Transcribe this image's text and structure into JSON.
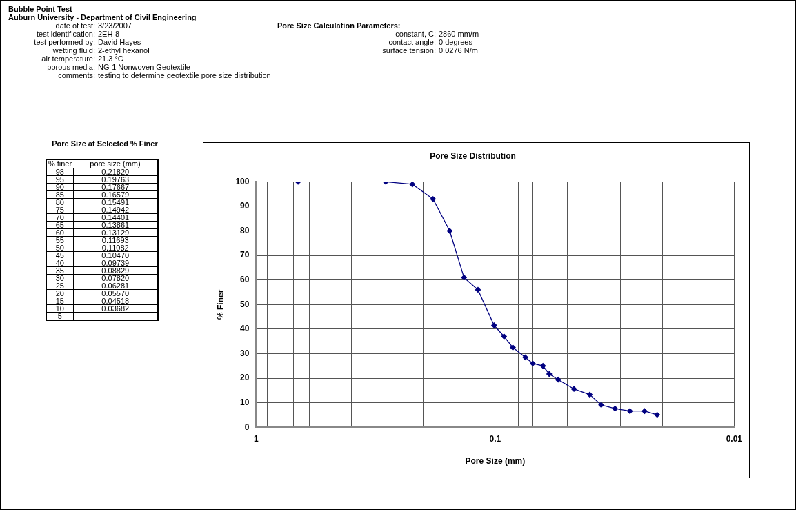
{
  "chart_data": [
    {
      "type": "other",
      "title": "Bubble Point Test",
      "subtitle": "Auburn University - Department of Civil Engineering",
      "annotations": [
        "date of test:",
        "3/23/2007",
        "test identification:",
        "2EH-8",
        "test performed by:",
        "David Hayes",
        "wetting fluid:",
        "2-ethyl hexanol",
        "air temperature:",
        "21.3 °C",
        "porous media:",
        "NG-1 Nonwoven Geotextile",
        "comments:",
        "testing to determine geotextile pore size distribution"
      ]
    },
    {
      "type": "other",
      "title": "Pore Size Calculation Parameters:",
      "annotations": [
        "constant, C:",
        "2860 mm/m",
        "contact angle:",
        "0 degrees",
        "surface tension:",
        "0.0276 N/m"
      ]
    },
    {
      "type": "other",
      "title": "Pore Size at Selected % Finer",
      "xlabel": "% finer",
      "ylabel": "pore size (mm)",
      "annotations": [
        "98",
        "0.21820",
        "95",
        "0.19763",
        "90",
        "0.17667",
        "85",
        "0.16579",
        "80",
        "0.15491",
        "75",
        "0.14942",
        "70",
        "0.14401",
        "65",
        "0.13861",
        "60",
        "0.13129",
        "55",
        "0.11693",
        "50",
        "0.11082",
        "45",
        "0.10470",
        "40",
        "0.09739",
        "35",
        "0.08829",
        "30",
        "0.07820",
        "25",
        "0.06281",
        "20",
        "0.05570",
        "15",
        "0.04518",
        "10",
        "0.03682",
        "5",
        "---"
      ]
    },
    {
      "type": "line",
      "title": "Pore Size Distribution",
      "xlabel": "Pore Size (mm)",
      "ylabel": "% Finer",
      "log": "x",
      "grid": true,
      "marker": "diamond",
      "legend": false,
      "x": [
        0.668,
        0.287,
        0.222,
        0.182,
        0.155,
        0.135,
        0.118,
        0.101,
        0.0918,
        0.0843,
        0.0748,
        0.0696,
        0.0631,
        0.0594,
        0.0545,
        0.0468,
        0.0402,
        0.036,
        0.0315,
        0.0273,
        0.0237,
        0.021
      ],
      "series": [
        {
          "color": "#000080",
          "values": [
            100,
            100,
            99,
            93,
            80,
            61,
            56,
            41.5,
            37,
            32.5,
            28.5,
            26,
            25,
            21.7,
            19.4,
            15.6,
            13.3,
            9.1,
            7.6,
            6.6,
            6.6,
            5.1
          ]
        }
      ],
      "xlim": [
        1,
        0.01
      ],
      "ylim": [
        0,
        100
      ],
      "xticks": [
        1,
        {
          "value": 0.9,
          "label": null
        },
        {
          "value": 0.8,
          "label": null
        },
        {
          "value": 0.7,
          "label": null
        },
        {
          "value": 0.6,
          "label": null
        },
        {
          "value": 0.5,
          "label": null
        },
        {
          "value": 0.4,
          "label": null
        },
        {
          "value": 0.3,
          "label": null
        },
        {
          "value": 0.2,
          "label": null
        },
        0.1,
        {
          "value": 0.09,
          "label": null
        },
        {
          "value": 0.08,
          "label": null
        },
        {
          "value": 0.07,
          "label": null
        },
        {
          "value": 0.06,
          "label": null
        },
        {
          "value": 0.05,
          "label": null
        },
        {
          "value": 0.04,
          "label": null
        },
        {
          "value": 0.03,
          "label": null
        },
        {
          "value": 0.02,
          "label": null
        },
        0.01
      ],
      "yticks": [
        0,
        10,
        20,
        30,
        40,
        50,
        60,
        70,
        80,
        90,
        100
      ]
    }
  ]
}
